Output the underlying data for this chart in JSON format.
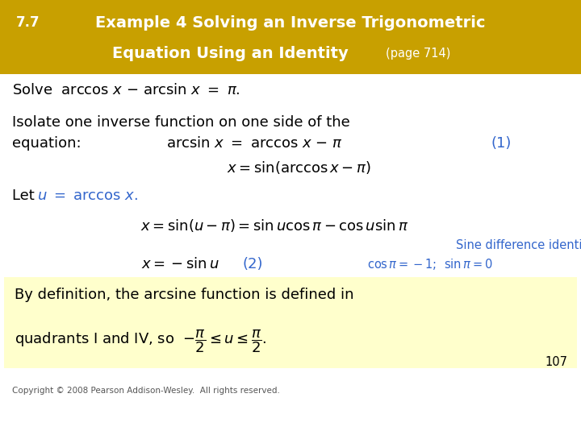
{
  "title_prefix": "7.7",
  "title_main": "Example 4 Solving an Inverse Trigonometric",
  "title_line2": "Equation Using an Identity",
  "title_page": "(page 714)",
  "title_bg_color": "#C8A000",
  "title_text_color": "#FFFFFF",
  "body_bg_color": "#FFFFFF",
  "highlight_bg_color": "#FFFFCC",
  "blue_color": "#3366CC",
  "black_color": "#000000",
  "footer_text": "Copyright © 2008 Pearson Addison-Wesley.  All rights reserved.",
  "page_number": "107"
}
